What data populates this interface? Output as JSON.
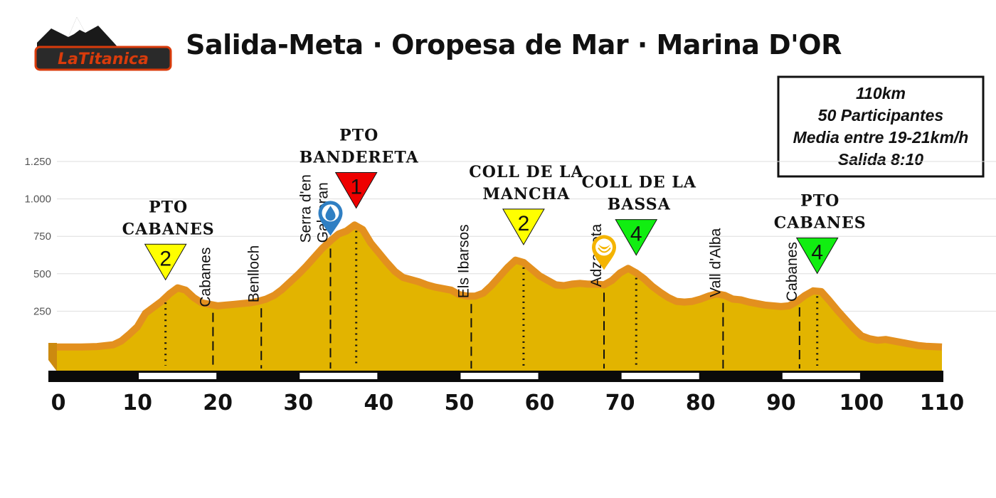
{
  "header": {
    "logo_text": "LaTitanica",
    "title": "Salida-Meta · Oropesa de Mar · Marina D'OR"
  },
  "info_box": {
    "lines": [
      "110km",
      "50 Participantes",
      "Media entre 19-21km/h",
      "Salida 8:10"
    ]
  },
  "chart_data": {
    "type": "area",
    "title": "Salida-Meta · Oropesa de Mar · Marina D'OR",
    "xlabel": "",
    "ylabel": "",
    "xlim": [
      0,
      110
    ],
    "ylim": [
      0,
      1250
    ],
    "x_ticks": [
      0,
      10,
      20,
      30,
      40,
      50,
      60,
      70,
      80,
      90,
      100,
      110
    ],
    "x_tick_labels": [
      "0",
      "10",
      "20",
      "30",
      "40",
      "50",
      "60",
      "70",
      "80",
      "90",
      "100",
      "110"
    ],
    "y_ticks": [
      250,
      500,
      750,
      1000,
      1250
    ],
    "y_tick_labels": [
      "250",
      "500",
      "750",
      "1.000",
      "1.250"
    ],
    "grid": true,
    "colors": {
      "fill": "#e2b400",
      "edge": "#e3901e",
      "road": "#0a0a0a"
    },
    "x": [
      0,
      3,
      5,
      7,
      8,
      9,
      10,
      11,
      12,
      13,
      14,
      15,
      16,
      17,
      18,
      19,
      20,
      21,
      22,
      23,
      24,
      25,
      26,
      27,
      28,
      29,
      30,
      31,
      32,
      33,
      34,
      35,
      36,
      37,
      38,
      39,
      40,
      41,
      42,
      43,
      44,
      45,
      46,
      47,
      48,
      49,
      50,
      51,
      52,
      53,
      54,
      55,
      56,
      57,
      58,
      59,
      60,
      61,
      62,
      63,
      64,
      65,
      66,
      67,
      68,
      69,
      70,
      71,
      72,
      73,
      74,
      75,
      76,
      77,
      78,
      79,
      80,
      81,
      82,
      83,
      84,
      85,
      86,
      87,
      88,
      89,
      90,
      91,
      92,
      93,
      94,
      95,
      96,
      97,
      98,
      99,
      100,
      101,
      102,
      103,
      104,
      105,
      106,
      107,
      108,
      110
    ],
    "elevation": [
      25,
      25,
      28,
      40,
      65,
      110,
      160,
      250,
      290,
      330,
      380,
      420,
      405,
      355,
      320,
      310,
      300,
      305,
      310,
      315,
      320,
      330,
      345,
      370,
      410,
      460,
      510,
      565,
      625,
      685,
      735,
      780,
      800,
      840,
      810,
      720,
      655,
      590,
      530,
      490,
      475,
      460,
      440,
      425,
      415,
      405,
      375,
      365,
      365,
      385,
      435,
      495,
      555,
      605,
      590,
      545,
      500,
      470,
      440,
      435,
      445,
      450,
      445,
      445,
      440,
      470,
      520,
      550,
      520,
      480,
      430,
      390,
      355,
      330,
      325,
      330,
      345,
      365,
      380,
      370,
      345,
      340,
      325,
      315,
      305,
      300,
      295,
      300,
      330,
      370,
      400,
      395,
      335,
      270,
      210,
      150,
      100,
      80,
      70,
      75,
      65,
      55,
      45,
      35,
      30,
      25
    ],
    "climbs": [
      {
        "km": 13.5,
        "label": [
          "PTO",
          "CABANES"
        ],
        "category": "2",
        "color": "#ffff00"
      },
      {
        "km": 37.2,
        "label": [
          "PTO",
          "BANDERETA"
        ],
        "category": "1",
        "color": "#ee0000"
      },
      {
        "km": 58.0,
        "label": [
          "COLL DE LA",
          "MANCHA"
        ],
        "category": "2",
        "color": "#ffff00"
      },
      {
        "km": 72.0,
        "label": [
          "COLL DE LA",
          "BASSA"
        ],
        "category": "4",
        "color": "#11ee11"
      },
      {
        "km": 94.5,
        "label": [
          "PTO",
          "CABANES"
        ],
        "category": "4",
        "color": "#11ee11"
      }
    ],
    "towns": [
      {
        "km": 19.4,
        "name": "Cabanes"
      },
      {
        "km": 25.4,
        "name": "Benlloch"
      },
      {
        "km": 34.0,
        "name": "Serra d'en Galceran"
      },
      {
        "km": 51.5,
        "name": "Els Ibarsos"
      },
      {
        "km": 68.0,
        "name": "Adzaneta"
      },
      {
        "km": 82.8,
        "name": "Vall d'Alba"
      },
      {
        "km": 92.3,
        "name": "Cabanes"
      }
    ],
    "services": [
      {
        "km": 34.0,
        "type": "water-drop-icon",
        "color": "#2f7fc3"
      },
      {
        "km": 68.0,
        "type": "banana-icon",
        "color": "#f4b400"
      }
    ]
  }
}
